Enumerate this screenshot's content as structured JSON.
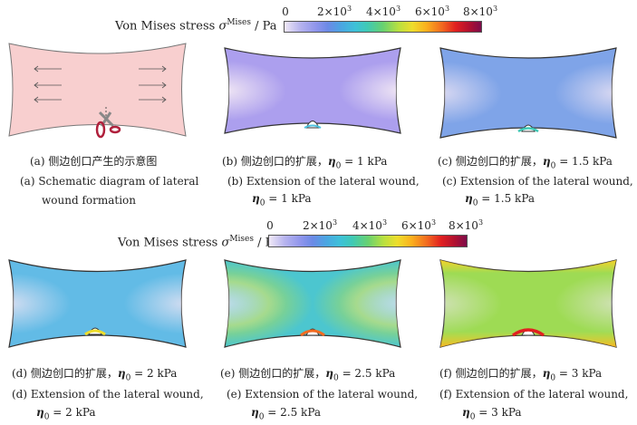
{
  "colorbar_top": {
    "title_prefix": "Von Mises stress ",
    "sigma": "σ",
    "sup": "Mises",
    "unit": " / Pa",
    "ticks": [
      {
        "base": "0",
        "exp": ""
      },
      {
        "base": "2×10",
        "exp": "3"
      },
      {
        "base": "4×10",
        "exp": "3"
      },
      {
        "base": "6×10",
        "exp": "3"
      },
      {
        "base": "8×10",
        "exp": "3"
      }
    ]
  },
  "colorbar_bottom": {
    "title_prefix": "Von Mises stress ",
    "sigma": "σ",
    "sup": "Mises",
    "unit": " / Pa",
    "ticks": [
      {
        "base": "0",
        "exp": ""
      },
      {
        "base": "2×10",
        "exp": "3"
      },
      {
        "base": "4×10",
        "exp": "3"
      },
      {
        "base": "6×10",
        "exp": "3"
      },
      {
        "base": "8×10",
        "exp": "3"
      }
    ]
  },
  "panels": {
    "a": {
      "cn": "(a) 侧边创口产生的示意图",
      "en1": "(a) Schematic diagram of lateral",
      "en2": "wound formation"
    },
    "b": {
      "cn_prefix": "(b) 侧边创口的扩展，",
      "eta": "η",
      "sub": "0",
      "cn_value": " = 1 kPa",
      "en1": "(b) Extension of the lateral wound,",
      "en2_value": " = 1 kPa"
    },
    "c": {
      "cn_prefix": "(c) 侧边创口的扩展，",
      "eta": "η",
      "sub": "0",
      "cn_value": " = 1.5 kPa",
      "en1": "(c) Extension of the lateral wound,",
      "en2_value": " = 1.5 kPa"
    },
    "d": {
      "cn_prefix": "(d) 侧边创口的扩展，",
      "eta": "η",
      "sub": "0",
      "cn_value": " = 2 kPa",
      "en1": "(d) Extension of the lateral wound,",
      "en2_value": " = 2 kPa"
    },
    "e": {
      "cn_prefix": "(e) 侧边创口的扩展，",
      "eta": "η",
      "sub": "0",
      "cn_value": " = 2.5 kPa",
      "en1": "(e) Extension of the lateral wound,",
      "en2_value": " = 2.5 kPa"
    },
    "f": {
      "cn_prefix": "(f) 侧边创口的扩展，",
      "eta": "η",
      "sub": "0",
      "cn_value": " = 3 kPa",
      "en1": "(f) Extension of the lateral wound,",
      "en2_value": " = 3 kPa"
    }
  }
}
